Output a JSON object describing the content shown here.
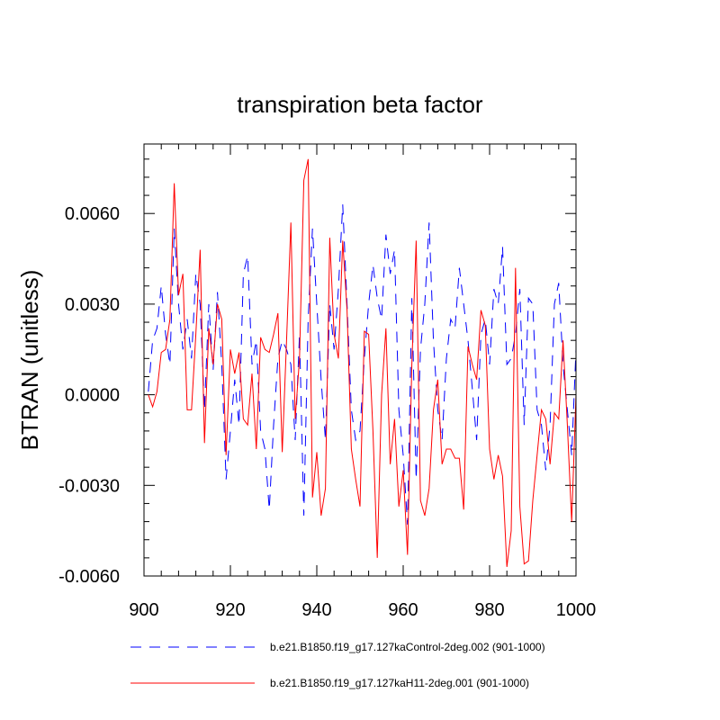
{
  "chart_data": {
    "type": "line",
    "title": "transpiration beta factor",
    "xlabel": "",
    "ylabel": "BTRAN  (unitless)",
    "xlim": [
      900,
      1000
    ],
    "ylim": [
      -0.006,
      0.0083
    ],
    "x_ticks": [
      900,
      920,
      940,
      960,
      980,
      1000
    ],
    "x_tick_labels": [
      "900",
      "920",
      "940",
      "960",
      "980",
      "1000"
    ],
    "y_ticks": [
      -0.006,
      -0.003,
      0.0,
      0.003,
      0.006
    ],
    "y_tick_labels": [
      "-0.0060",
      "-0.0030",
      "0.0000",
      "0.0030",
      "0.0060"
    ],
    "grid": false,
    "legend_position": "bottom",
    "series": [
      {
        "name": "b.e21.B1850.f19_g17.127kaControl-2deg.002 (901-1000)",
        "color": "#0000ff",
        "dash": "dashed",
        "x": [
          901,
          902,
          903,
          904,
          905,
          906,
          907,
          908,
          909,
          910,
          911,
          912,
          913,
          914,
          915,
          916,
          917,
          918,
          919,
          920,
          921,
          922,
          923,
          924,
          925,
          926,
          927,
          928,
          929,
          930,
          931,
          932,
          933,
          934,
          935,
          936,
          937,
          938,
          939,
          940,
          941,
          942,
          943,
          944,
          945,
          946,
          947,
          948,
          949,
          950,
          951,
          952,
          953,
          954,
          955,
          956,
          957,
          958,
          959,
          960,
          961,
          962,
          963,
          964,
          965,
          966,
          967,
          968,
          969,
          970,
          971,
          972,
          973,
          974,
          975,
          976,
          977,
          978,
          979,
          980,
          981,
          982,
          983,
          984,
          985,
          986,
          987,
          988,
          989,
          990,
          991,
          992,
          993,
          994,
          995,
          996,
          997,
          998,
          999,
          1000
        ],
        "values": [
          0.0001,
          0.0018,
          0.0022,
          0.0036,
          0.002,
          0.001,
          0.0055,
          0.003,
          0.0015,
          0.0025,
          0.0012,
          0.004,
          0.003,
          -0.0005,
          0.003,
          0.0008,
          0.0034,
          0.001,
          -0.0028,
          -0.0012,
          0.0005,
          -0.001,
          0.004,
          0.0046,
          0.001,
          0.0018,
          -0.0012,
          -0.0018,
          -0.0038,
          -0.001,
          0.0012,
          0.0018,
          0.0015,
          0.001,
          -0.0015,
          0.002,
          -0.004,
          0.0025,
          0.0055,
          0.003,
          0.0005,
          -0.0015,
          0.003,
          0.0015,
          0.0035,
          0.0063,
          0.003,
          -0.0005,
          -0.0015,
          -0.0012,
          0.0012,
          0.003,
          0.0043,
          0.0032,
          0.0025,
          0.0053,
          0.004,
          0.0048,
          -0.0005,
          -0.002,
          -0.0043,
          0.0032,
          -0.0028,
          0.0015,
          0.003,
          0.0057,
          0.0018,
          -0.0005,
          -0.0015,
          0.0012,
          0.0025,
          0.0022,
          0.0042,
          0.003,
          0.0018,
          0.0002,
          -0.0015,
          0.002,
          0.0025,
          0.001,
          0.0035,
          0.003,
          0.0049,
          0.001,
          0.0012,
          0.002,
          0.0035,
          -0.001,
          0.0032,
          0.003,
          -0.0005,
          -0.001,
          -0.0025,
          -0.001,
          0.003,
          0.0037,
          0.001,
          -0.0005,
          -0.002,
          0.0015
        ]
      },
      {
        "name": "b.e21.B1850.f19_g17.127kaH11-2deg.001 (901-1000)",
        "color": "#ff0000",
        "dash": "solid",
        "x": [
          901,
          902,
          903,
          904,
          905,
          906,
          907,
          908,
          909,
          910,
          911,
          912,
          913,
          914,
          915,
          916,
          917,
          918,
          919,
          920,
          921,
          922,
          923,
          924,
          925,
          926,
          927,
          928,
          929,
          930,
          931,
          932,
          933,
          934,
          935,
          936,
          937,
          938,
          939,
          940,
          941,
          942,
          943,
          944,
          945,
          946,
          947,
          948,
          949,
          950,
          951,
          952,
          953,
          954,
          955,
          956,
          957,
          958,
          959,
          960,
          961,
          962,
          963,
          964,
          965,
          966,
          967,
          968,
          969,
          970,
          971,
          972,
          973,
          974,
          975,
          976,
          977,
          978,
          979,
          980,
          981,
          982,
          983,
          984,
          985,
          986,
          987,
          988,
          989,
          990,
          991,
          992,
          993,
          994,
          995,
          996,
          997,
          998,
          999,
          1000
        ],
        "values": [
          0.0,
          -0.0004,
          0.0001,
          0.0014,
          0.0015,
          0.0025,
          0.007,
          0.0033,
          0.004,
          -0.0005,
          -0.0005,
          0.002,
          0.0048,
          -0.0016,
          0.0022,
          0.001,
          0.003,
          0.0025,
          -0.002,
          0.0015,
          0.0007,
          0.0014,
          -0.0008,
          -0.001,
          0.0007,
          -0.0018,
          0.0019,
          0.0015,
          0.0014,
          0.002,
          0.0027,
          -0.0019,
          0.0018,
          0.0057,
          -0.0008,
          0.0012,
          0.0071,
          0.0078,
          -0.0034,
          -0.0019,
          -0.004,
          -0.0031,
          0.0052,
          0.002,
          0.0012,
          0.0051,
          0.0028,
          -0.0018,
          -0.0028,
          -0.0037,
          0.0021,
          0.002,
          -0.0012,
          -0.0054,
          0.0,
          0.0022,
          -0.0023,
          -0.0008,
          -0.0037,
          -0.0025,
          -0.0053,
          0.001,
          0.0051,
          -0.0035,
          -0.004,
          -0.0031,
          -0.0005,
          0.0005,
          -0.0023,
          -0.0018,
          -0.0018,
          -0.0021,
          -0.0021,
          -0.0038,
          0.0016,
          0.001,
          0.0005,
          0.0028,
          0.0023,
          -0.0018,
          -0.0028,
          -0.002,
          -0.0027,
          -0.0057,
          -0.0045,
          0.0042,
          -0.0037,
          -0.0056,
          -0.0055,
          -0.0035,
          -0.002,
          -0.0005,
          -0.0008,
          -0.0023,
          -0.0006,
          -0.0008,
          0.0018,
          -0.001,
          -0.0042,
          0.0
        ]
      }
    ]
  }
}
